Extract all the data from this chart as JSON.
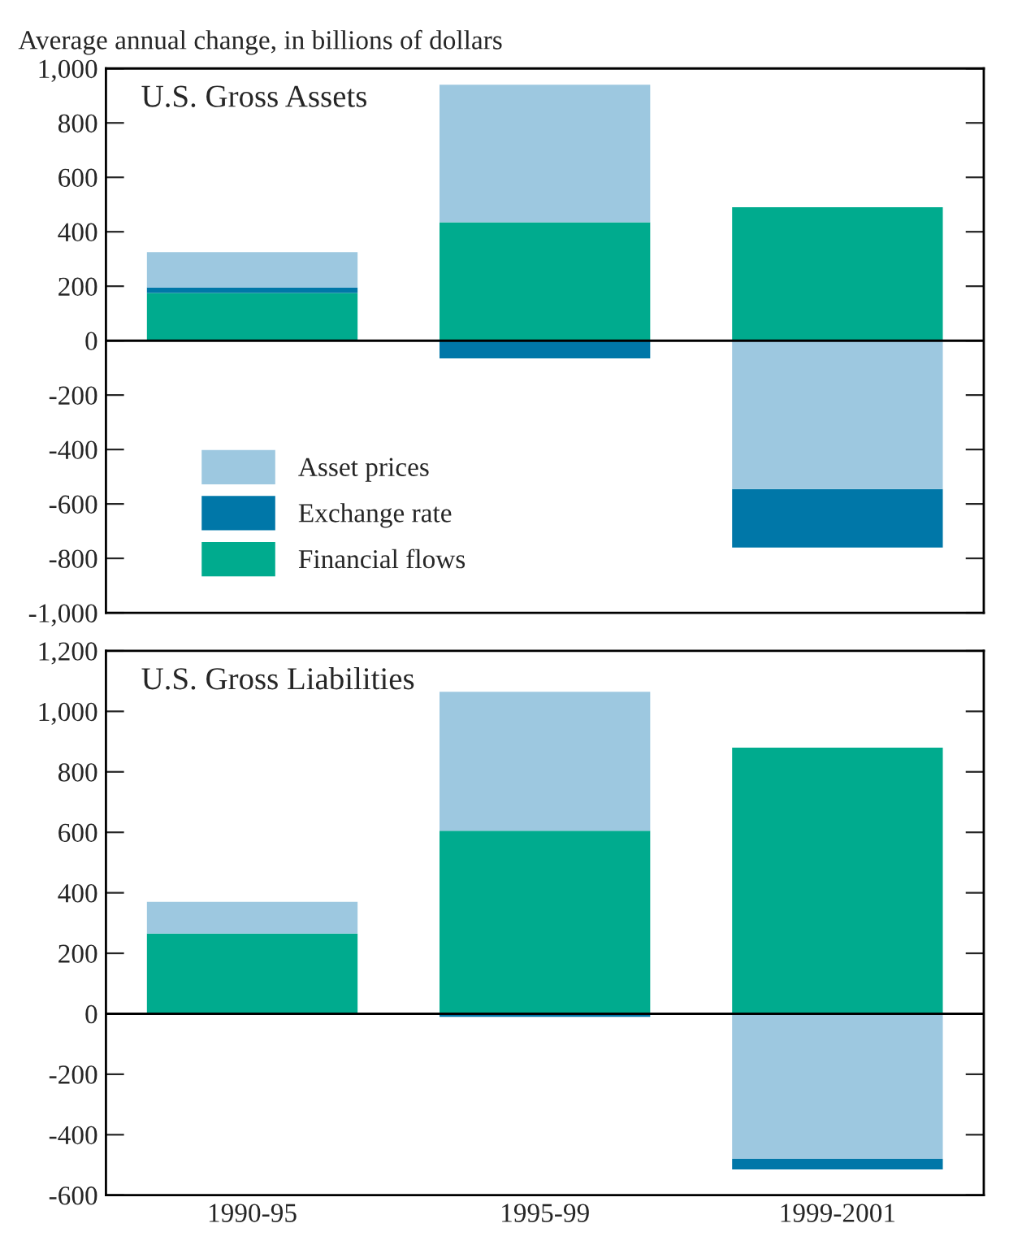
{
  "chart_data": [
    {
      "type": "bar",
      "title": "U.S. Gross Assets",
      "ylabel": "Average annual change, in billions of dollars",
      "stacked": true,
      "categories": [
        null,
        null,
        null
      ],
      "series": [
        {
          "name": "Financial flows",
          "color": "#00ab8e",
          "values": [
            175,
            435,
            490
          ]
        },
        {
          "name": "Exchange rate",
          "color": "#0077a8",
          "values": [
            20,
            -65,
            -215
          ]
        },
        {
          "name": "Asset prices",
          "color": "#9dc8e0",
          "values": [
            130,
            505,
            -545
          ]
        }
      ],
      "ylim": [
        -1000,
        1000
      ],
      "yticks": [
        {
          "value": -1000,
          "label": "-1,000"
        },
        -800,
        -600,
        -400,
        -200,
        0,
        200,
        400,
        600,
        800,
        {
          "value": 1000,
          "label": "1,000"
        }
      ],
      "ref_lines": [
        {
          "axis": "y",
          "value": 0,
          "label": null,
          "color": "#000000"
        }
      ],
      "legend": "lower left",
      "grid": false,
      "tick_labels": "y"
    },
    {
      "type": "bar",
      "title": "U.S. Gross Liabilities",
      "stacked": true,
      "categories": [
        "1990-95",
        "1995-99",
        "1999-2001"
      ],
      "series": [
        {
          "color": "#00ab8e",
          "values": [
            265,
            605,
            880
          ]
        },
        {
          "color": "#0077a8",
          "values": [
            0,
            -10,
            -35
          ]
        },
        {
          "color": "#9dc8e0",
          "values": [
            105,
            460,
            -480
          ]
        }
      ],
      "ylim": [
        -600,
        1200
      ],
      "yticks": [
        -600,
        -400,
        -200,
        0,
        200,
        400,
        600,
        800,
        {
          "value": 1000,
          "label": "1,000"
        },
        {
          "value": 1200,
          "label": "1,200"
        }
      ],
      "ref_lines": [
        {
          "axis": "y",
          "value": 0,
          "label": null,
          "color": "#000000"
        }
      ],
      "grid": false
    }
  ]
}
